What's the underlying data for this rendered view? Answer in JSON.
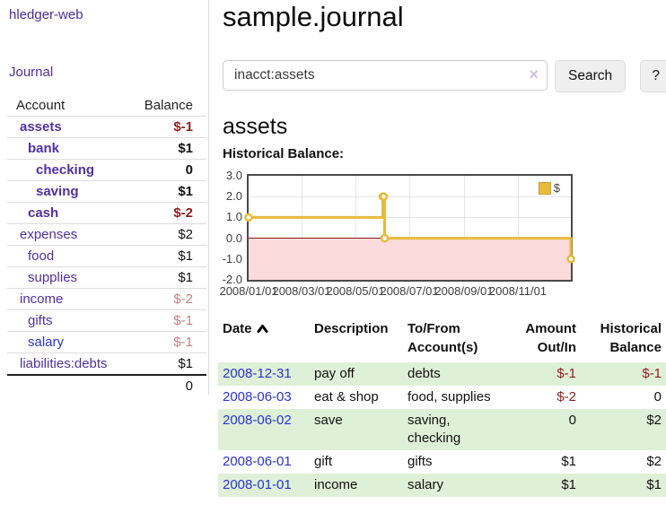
{
  "sidebar": {
    "brand": "hledger-web",
    "journal_link": "Journal",
    "accounts_table": {
      "headers": {
        "account": "Account",
        "balance": "Balance"
      },
      "rows": [
        {
          "name": "assets",
          "indent": 0,
          "bold": true,
          "balance": "$-1",
          "balance_style": "negative-strong"
        },
        {
          "name": "bank",
          "indent": 1,
          "bold": true,
          "balance": "$1",
          "balance_style": "normal"
        },
        {
          "name": "checking",
          "indent": 2,
          "bold": true,
          "balance": "0",
          "balance_style": "normal"
        },
        {
          "name": "saving",
          "indent": 2,
          "bold": true,
          "balance": "$1",
          "balance_style": "normal"
        },
        {
          "name": "cash",
          "indent": 1,
          "bold": true,
          "balance": "$-2",
          "balance_style": "negative-strong"
        },
        {
          "name": "expenses",
          "indent": 0,
          "bold": false,
          "balance": "$2",
          "balance_style": "normal"
        },
        {
          "name": "food",
          "indent": 1,
          "bold": false,
          "balance": "$1",
          "balance_style": "normal"
        },
        {
          "name": "supplies",
          "indent": 1,
          "bold": false,
          "balance": "$1",
          "balance_style": "normal"
        },
        {
          "name": "income",
          "indent": 0,
          "bold": false,
          "balance": "$-2",
          "balance_style": "negative-soft"
        },
        {
          "name": "gifts",
          "indent": 1,
          "bold": false,
          "balance": "$-1",
          "balance_style": "negative-soft"
        },
        {
          "name": "salary",
          "indent": 1,
          "bold": false,
          "balance": "$-1",
          "balance_style": "negative-soft",
          "link_style": "blue"
        },
        {
          "name": "liabilities:debts",
          "indent": 0,
          "bold": false,
          "balance": "$1",
          "balance_style": "normal"
        }
      ],
      "total": "0"
    }
  },
  "header": {
    "title": "sample.journal"
  },
  "search": {
    "value": "inacct:assets",
    "clear_icon": "×",
    "search_button": "Search",
    "help_button": "?"
  },
  "register": {
    "heading": "assets",
    "chart_label": "Historical Balance:"
  },
  "chart_data": {
    "type": "line",
    "title": "Historical Balance",
    "step": true,
    "legend": [
      {
        "label": "$",
        "color": "#e8ba3a"
      }
    ],
    "legend_position": "top-right",
    "x": [
      "2008-01-01",
      "2008-06-01",
      "2008-06-02",
      "2008-06-03",
      "2008-12-31"
    ],
    "values": [
      1,
      2,
      2,
      0,
      -1
    ],
    "x_range": [
      "2008-01-01",
      "2008-12-31"
    ],
    "ylim": [
      -2,
      3
    ],
    "yticks": [
      {
        "label": "3.0",
        "value": 3
      },
      {
        "label": "2.0",
        "value": 2
      },
      {
        "label": "1.0",
        "value": 1
      },
      {
        "label": "0.0",
        "value": 0
      },
      {
        "label": "-1.0",
        "value": -1
      },
      {
        "label": "-2.0",
        "value": -2
      }
    ],
    "xticks": [
      "2008/01/01",
      "2008/03/01",
      "2008/05/01",
      "2008/07/01",
      "2008/09/01",
      "2008/11/01"
    ],
    "grid": true,
    "line_color": "#e8ba3a",
    "marker": "open-circle",
    "negative_region_color": "#fbdbdb",
    "zero_line_color": "#8c1414"
  },
  "transactions": {
    "headers": {
      "date": "Date",
      "sort_icon": "chevron-up",
      "description": "Description",
      "accounts": "To/From\nAccount(s)",
      "amount": "Amount\nOut/In",
      "balance": "Historical\nBalance"
    },
    "rows": [
      {
        "date": "2008-12-31",
        "description": "pay off",
        "accounts": "debts",
        "amount": "$-1",
        "amount_neg": true,
        "balance": "$-1",
        "balance_neg": true
      },
      {
        "date": "2008-06-03",
        "description": "eat & shop",
        "accounts": "food, supplies",
        "amount": "$-2",
        "amount_neg": true,
        "balance": "0",
        "balance_neg": false
      },
      {
        "date": "2008-06-02",
        "description": "save",
        "accounts": "saving,\nchecking",
        "amount": "0",
        "amount_neg": false,
        "balance": "$2",
        "balance_neg": false
      },
      {
        "date": "2008-06-01",
        "description": "gift",
        "accounts": "gifts",
        "amount": "$1",
        "amount_neg": false,
        "balance": "$2",
        "balance_neg": false
      },
      {
        "date": "2008-01-01",
        "description": "income",
        "accounts": "salary",
        "amount": "$1",
        "amount_neg": false,
        "balance": "$1",
        "balance_neg": false
      }
    ]
  }
}
